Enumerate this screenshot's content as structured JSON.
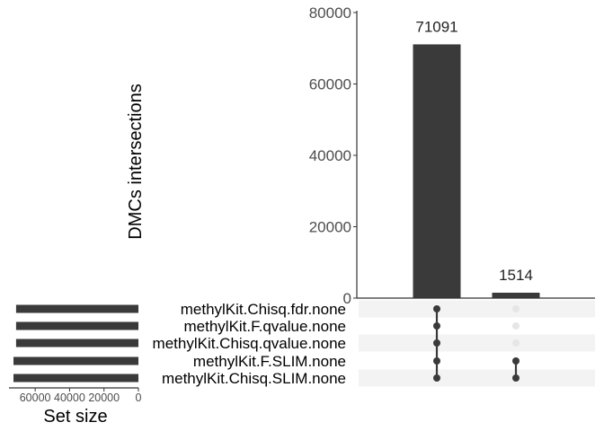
{
  "chart_data": {
    "type": "bar",
    "plot_kind": "upset",
    "intersections": {
      "ylabel": "DMCs intersections",
      "ylim": [
        0,
        80000
      ],
      "yticks": [
        0,
        20000,
        40000,
        60000,
        80000
      ],
      "bars": [
        {
          "value": 71091,
          "label": "71091",
          "members": [
            true,
            true,
            true,
            true,
            true
          ]
        },
        {
          "value": 1514,
          "label": "1514",
          "members": [
            false,
            false,
            false,
            true,
            true
          ]
        }
      ]
    },
    "sets": {
      "names": [
        "methylKit.Chisq.fdr.none",
        "methylKit.F.qvalue.none",
        "methylKit.Chisq.qvalue.none",
        "methylKit.F.SLIM.none",
        "methylKit.Chisq.SLIM.none"
      ],
      "sizes": [
        71091,
        71091,
        71091,
        72605,
        72605
      ],
      "xlabel": "Set size",
      "xticks": [
        60000,
        40000,
        20000,
        0
      ],
      "xlim": [
        0,
        72605
      ]
    },
    "colors": {
      "bar": "#3a3a3a",
      "dot_active": "#3a3a3a",
      "dot_inactive": "#e6e6e6",
      "stripe": "#f3f3f3",
      "axis": "#333333",
      "tick_text": "#4d4d4d"
    }
  }
}
